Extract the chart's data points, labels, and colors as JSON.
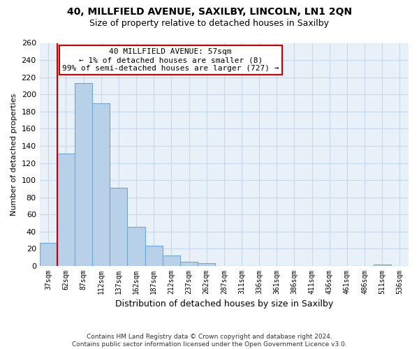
{
  "title": "40, MILLFIELD AVENUE, SAXILBY, LINCOLN, LN1 2QN",
  "subtitle": "Size of property relative to detached houses in Saxilby",
  "xlabel": "Distribution of detached houses by size in Saxilby",
  "ylabel": "Number of detached properties",
  "bar_labels": [
    "37sqm",
    "62sqm",
    "87sqm",
    "112sqm",
    "137sqm",
    "162sqm",
    "187sqm",
    "212sqm",
    "237sqm",
    "262sqm",
    "287sqm",
    "311sqm",
    "336sqm",
    "361sqm",
    "386sqm",
    "411sqm",
    "436sqm",
    "461sqm",
    "486sqm",
    "511sqm",
    "536sqm"
  ],
  "bar_values": [
    27,
    131,
    213,
    190,
    91,
    46,
    24,
    12,
    5,
    3,
    0,
    0,
    0,
    0,
    0,
    0,
    0,
    0,
    0,
    2,
    0
  ],
  "bar_color": "#b8d0e8",
  "bar_edge_color": "#6aaad4",
  "grid_color": "#c8d8ec",
  "background_color": "#e8f0f8",
  "vline_color": "#cc0000",
  "annotation_text": "40 MILLFIELD AVENUE: 57sqm\n← 1% of detached houses are smaller (8)\n99% of semi-detached houses are larger (727) →",
  "annotation_box_color": "#ffffff",
  "annotation_box_edge": "#cc0000",
  "ylim": [
    0,
    260
  ],
  "yticks": [
    0,
    20,
    40,
    60,
    80,
    100,
    120,
    140,
    160,
    180,
    200,
    220,
    240,
    260
  ],
  "footer_line1": "Contains HM Land Registry data © Crown copyright and database right 2024.",
  "footer_line2": "Contains public sector information licensed under the Open Government Licence v3.0."
}
